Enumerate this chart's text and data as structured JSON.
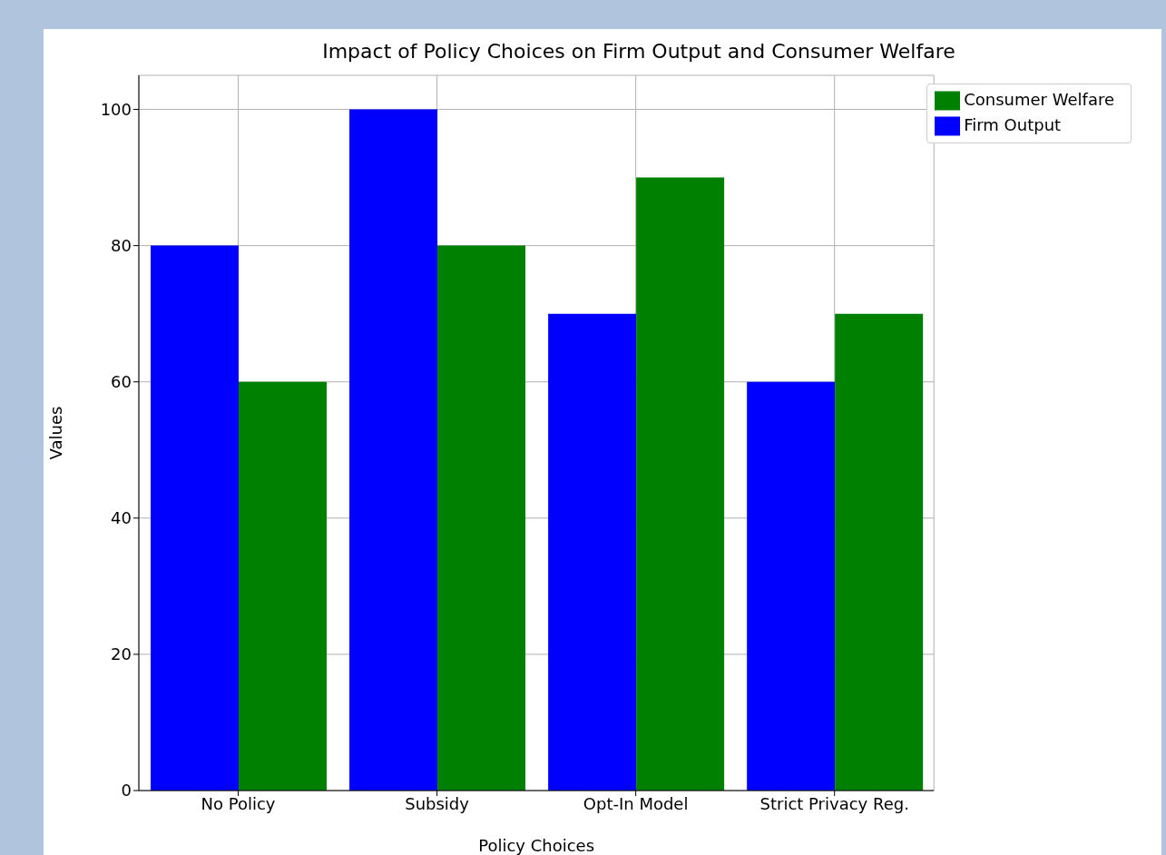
{
  "chart_data": {
    "type": "bar",
    "title": "Impact of Policy Choices on Firm Output and Consumer Welfare",
    "xlabel": "Policy Choices",
    "ylabel": "Values",
    "categories": [
      "No Policy",
      "Subsidy",
      "Opt-In Model",
      "Strict Privacy Reg."
    ],
    "series": [
      {
        "name": "Firm Output",
        "color": "#0000ff",
        "values": [
          80,
          100,
          70,
          60
        ]
      },
      {
        "name": "Consumer Welfare",
        "color": "#008000",
        "values": [
          60,
          80,
          90,
          70
        ]
      }
    ],
    "ylim": [
      0,
      105
    ],
    "yticks": [
      0,
      20,
      40,
      60,
      80,
      100
    ],
    "grid": true,
    "legend": "top right"
  }
}
